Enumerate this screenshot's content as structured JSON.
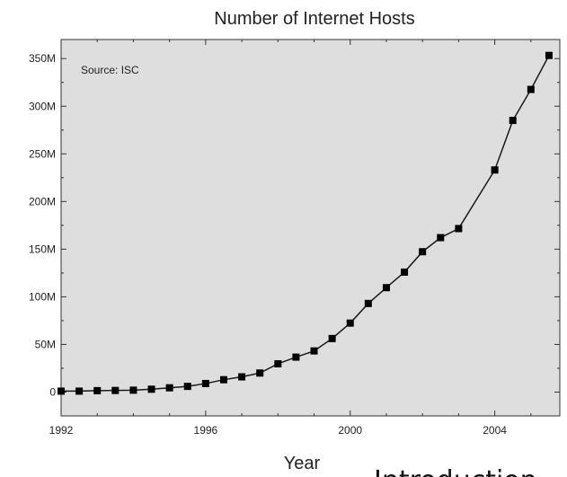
{
  "chart_data": {
    "type": "line",
    "title": "Number of Internet Hosts",
    "xlabel": "Year",
    "ylabel": "",
    "annotation": "Source: ISC",
    "xlim": [
      1992,
      2005.8
    ],
    "ylim": [
      -25,
      370
    ],
    "x_ticks": [
      1992,
      1996,
      2000,
      2004
    ],
    "x_tick_labels": [
      "1992",
      "1996",
      "2000",
      "2004"
    ],
    "y_ticks": [
      0,
      50,
      100,
      150,
      200,
      250,
      300,
      350
    ],
    "y_tick_labels": [
      "0",
      "50M",
      "100M",
      "150M",
      "200M",
      "250M",
      "300M",
      "350M"
    ],
    "grid": false,
    "series": [
      {
        "x": [
          1992.0,
          1992.5,
          1993.0,
          1993.5,
          1994.0,
          1994.5,
          1995.0,
          1995.5,
          1996.0,
          1996.5,
          1997.0,
          1997.5,
          1998.0,
          1998.5,
          1999.0,
          1999.5,
          2000.0,
          2000.5,
          2001.0,
          2001.5,
          2002.0,
          2002.5,
          2003.0,
          2004.0,
          2004.5,
          2005.0,
          2005.5
        ],
        "values": [
          1,
          1,
          1.5,
          1.7,
          2,
          3,
          4.5,
          6,
          9,
          13,
          16,
          20,
          29.7,
          36.7,
          43.2,
          56.2,
          72.4,
          93,
          109.6,
          125.9,
          147.3,
          162.1,
          171.6,
          233.1,
          285.1,
          317.6,
          353.3
        ]
      }
    ],
    "marker": "square",
    "line_color": "#1a1a1a",
    "plot_background": "#dedede"
  },
  "overlay": {
    "text": "Introduction"
  }
}
